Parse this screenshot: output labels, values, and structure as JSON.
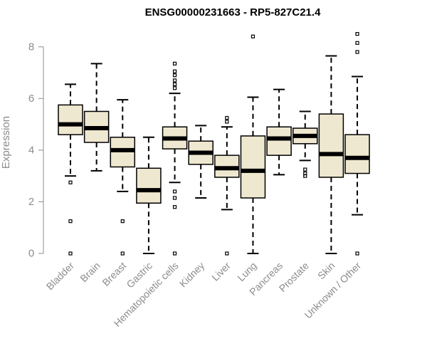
{
  "chart_data": {
    "type": "box",
    "title": "ENSG00000231663 - RP5-827C21.4",
    "ylabel": "Expression",
    "xlabel": "",
    "ylim": [
      0,
      8.6
    ],
    "yticks": [
      0,
      2,
      4,
      6,
      8
    ],
    "categories": [
      "Bladder",
      "Brain",
      "Breast",
      "Gastric",
      "Hematopoietic cells",
      "Kidney",
      "Liver",
      "Lung",
      "Pancreas",
      "Prostate",
      "Skin",
      "Unknown / Other"
    ],
    "boxes": [
      {
        "label": "Bladder",
        "whisker_low": 3.0,
        "q1": 4.6,
        "median": 5.0,
        "q3": 5.75,
        "whisker_high": 6.55,
        "outliers": [
          2.75,
          1.25,
          0.0
        ]
      },
      {
        "label": "Brain",
        "whisker_low": 3.2,
        "q1": 4.3,
        "median": 4.85,
        "q3": 5.5,
        "whisker_high": 7.35,
        "outliers": []
      },
      {
        "label": "Breast",
        "whisker_low": 2.4,
        "q1": 3.35,
        "median": 4.0,
        "q3": 4.5,
        "whisker_high": 5.95,
        "outliers": [
          1.25,
          0.0
        ]
      },
      {
        "label": "Gastric",
        "whisker_low": 0.0,
        "q1": 1.95,
        "median": 2.45,
        "q3": 3.3,
        "whisker_high": 4.5,
        "outliers": []
      },
      {
        "label": "Hematopoietic cells",
        "whisker_low": 2.75,
        "q1": 4.05,
        "median": 4.45,
        "q3": 4.9,
        "whisker_high": 6.2,
        "outliers": [
          7.35,
          7.05,
          6.9,
          6.7,
          6.55,
          6.4,
          2.4,
          2.15,
          1.8,
          0.0
        ]
      },
      {
        "label": "Kidney",
        "whisker_low": 2.15,
        "q1": 3.45,
        "median": 3.9,
        "q3": 4.35,
        "whisker_high": 4.95,
        "outliers": []
      },
      {
        "label": "Liver",
        "whisker_low": 1.7,
        "q1": 2.95,
        "median": 3.3,
        "q3": 3.8,
        "whisker_high": 4.9,
        "outliers": [
          5.25,
          5.1,
          0.0
        ]
      },
      {
        "label": "Lung",
        "whisker_low": 0.0,
        "q1": 2.15,
        "median": 3.2,
        "q3": 4.55,
        "whisker_high": 6.05,
        "outliers": [
          8.4
        ]
      },
      {
        "label": "Pancreas",
        "whisker_low": 3.05,
        "q1": 3.8,
        "median": 4.45,
        "q3": 4.9,
        "whisker_high": 6.35,
        "outliers": []
      },
      {
        "label": "Prostate",
        "whisker_low": 3.6,
        "q1": 4.25,
        "median": 4.55,
        "q3": 4.85,
        "whisker_high": 5.5,
        "outliers": [
          3.25,
          3.1,
          3.0
        ]
      },
      {
        "label": "Skin",
        "whisker_low": 0.0,
        "q1": 2.95,
        "median": 3.85,
        "q3": 5.4,
        "whisker_high": 7.65,
        "outliers": []
      },
      {
        "label": "Unknown / Other",
        "whisker_low": 1.5,
        "q1": 3.1,
        "median": 3.7,
        "q3": 4.6,
        "whisker_high": 6.85,
        "outliers": [
          8.5,
          8.15,
          7.8,
          0.0
        ]
      }
    ],
    "box_fill": "#efe8d0",
    "box_stroke": "#000000",
    "axis_color": "#8c8c8c",
    "grid": false,
    "legend": "none"
  }
}
